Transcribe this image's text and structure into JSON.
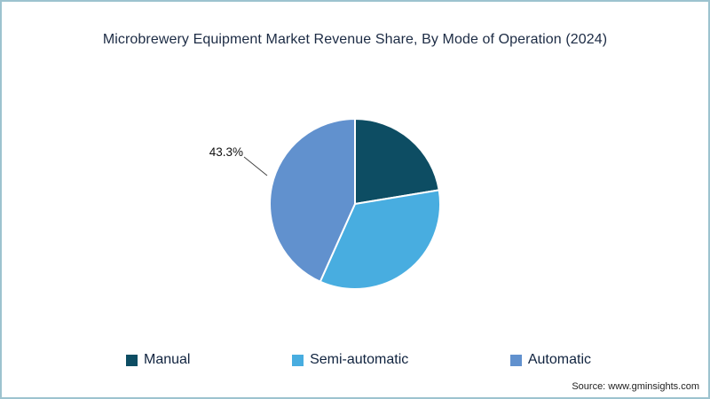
{
  "chart": {
    "title": "Microbrewery Equipment Market Revenue Share, By Mode of Operation (2024)"
  },
  "chart_data": {
    "type": "pie",
    "title": "Microbrewery Equipment Market Revenue Share, By Mode of Operation (2024)",
    "categories": [
      "Manual",
      "Semi-automatic",
      "Automatic"
    ],
    "values": [
      22.4,
      34.3,
      43.3
    ],
    "unit": "%",
    "colors": [
      "#0d4d63",
      "#48ade0",
      "#6191ce"
    ],
    "start_angle": "top",
    "direction": "clockwise",
    "callout": {
      "category": "Automatic",
      "text": "43.3%"
    },
    "legend_position": "bottom"
  },
  "footer": {
    "source": "Source: www.gminsights.com"
  }
}
